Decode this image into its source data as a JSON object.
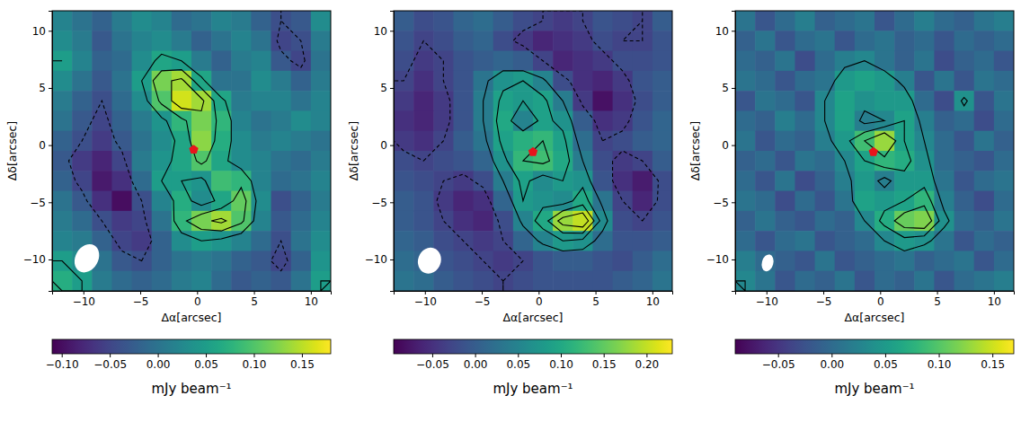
{
  "chart_data": [
    {
      "type": "heatmap",
      "color": "viridis",
      "xlabel": "Δα[arcsec]",
      "ylabel": "Δδ[arcsec]",
      "xlim": [
        -12.75,
        11.75
      ],
      "ylim": [
        -12.75,
        11.75
      ],
      "xticks": [
        {
          "value": -10,
          "label": "−10"
        },
        {
          "value": -5,
          "label": "−5"
        },
        0,
        5,
        10
      ],
      "yticks": [
        {
          "value": -10,
          "label": "−10"
        },
        {
          "value": -5,
          "label": "−5"
        },
        0,
        5,
        10
      ],
      "x": [
        -11.875,
        -10.125,
        -8.375,
        -6.625,
        -4.875,
        -3.125,
        -1.375,
        0.375,
        2.125,
        3.875,
        5.625,
        7.375,
        9.125,
        10.875
      ],
      "y": [
        10.875,
        9.125,
        7.375,
        5.625,
        3.875,
        2.125,
        0.375,
        -1.375,
        -3.125,
        -4.875,
        -6.625,
        -8.375,
        -10.125,
        -11.875
      ],
      "z": [
        [
          0.02,
          0.0,
          -0.02,
          0.01,
          0.03,
          0.02,
          -0.01,
          0.0,
          0.02,
          0.01,
          -0.02,
          -0.04,
          -0.03,
          0.03
        ],
        [
          0.03,
          0.01,
          -0.03,
          0.0,
          0.02,
          0.03,
          0.01,
          -0.02,
          0.0,
          0.02,
          0.0,
          -0.05,
          -0.04,
          0.01
        ],
        [
          0.05,
          0.02,
          -0.02,
          -0.01,
          0.03,
          0.06,
          0.05,
          0.01,
          -0.02,
          0.01,
          0.02,
          -0.03,
          -0.05,
          0.0
        ],
        [
          0.03,
          0.0,
          -0.03,
          0.0,
          0.05,
          0.12,
          0.14,
          0.06,
          0.0,
          0.0,
          0.03,
          0.01,
          -0.02,
          0.01
        ],
        [
          0.01,
          -0.02,
          -0.04,
          -0.01,
          0.03,
          0.1,
          0.16,
          0.14,
          0.06,
          0.01,
          0.02,
          0.02,
          0.0,
          0.02
        ],
        [
          0.0,
          -0.03,
          -0.05,
          -0.02,
          0.01,
          0.04,
          0.08,
          0.12,
          0.08,
          0.02,
          0.0,
          0.01,
          0.03,
          0.02
        ],
        [
          -0.02,
          -0.04,
          -0.06,
          -0.03,
          0.0,
          0.03,
          0.06,
          0.13,
          0.07,
          0.03,
          0.01,
          0.02,
          0.01,
          0.0
        ],
        [
          -0.03,
          -0.06,
          -0.08,
          -0.05,
          0.01,
          0.04,
          0.06,
          0.1,
          0.06,
          0.03,
          0.02,
          0.0,
          -0.01,
          0.01
        ],
        [
          -0.02,
          -0.05,
          -0.09,
          -0.07,
          -0.01,
          0.05,
          0.05,
          0.04,
          0.09,
          0.08,
          0.02,
          -0.01,
          0.0,
          0.02
        ],
        [
          0.0,
          -0.03,
          -0.07,
          -0.1,
          -0.04,
          0.02,
          0.07,
          0.03,
          0.06,
          0.11,
          0.03,
          -0.04,
          -0.02,
          0.01
        ],
        [
          0.01,
          -0.01,
          -0.04,
          -0.06,
          -0.05,
          0.0,
          0.08,
          0.12,
          0.14,
          0.1,
          0.02,
          -0.03,
          -0.01,
          0.02
        ],
        [
          0.02,
          0.01,
          -0.02,
          -0.05,
          -0.06,
          -0.02,
          0.03,
          0.05,
          0.04,
          0.02,
          -0.01,
          -0.04,
          0.0,
          0.03
        ],
        [
          0.05,
          0.03,
          0.0,
          -0.03,
          -0.04,
          -0.02,
          0.0,
          0.01,
          0.0,
          -0.02,
          -0.03,
          -0.05,
          -0.02,
          0.04
        ],
        [
          0.07,
          0.05,
          0.01,
          -0.01,
          -0.02,
          -0.01,
          0.01,
          0.02,
          -0.01,
          -0.03,
          -0.02,
          -0.03,
          0.0,
          0.05
        ]
      ],
      "contours": [
        -0.04,
        0.05,
        0.09,
        0.13
      ],
      "colorbar": {
        "label": "mJy beam⁻¹",
        "lim": [
          -0.11,
          0.18
        ],
        "ticks": [
          {
            "value": -0.1,
            "label": "−0.10"
          },
          {
            "value": -0.05,
            "label": "−0.05"
          },
          {
            "value": 0,
            "label": "0.00"
          },
          0.05,
          {
            "value": 0.1,
            "label": "0.10"
          },
          0.15
        ]
      },
      "beam": {
        "x": -9.7,
        "y": -9.9,
        "major": 2.6,
        "minor": 2.0,
        "pa": -30
      },
      "source": {
        "x": -0.3,
        "y": -0.4,
        "color": "#e8141c",
        "marker": "pentagon"
      }
    },
    {
      "type": "heatmap",
      "color": "viridis",
      "xlabel": "Δα[arcsec]",
      "ylabel": "Δδ[arcsec]",
      "xlim": [
        -12.75,
        11.75
      ],
      "ylim": [
        -12.75,
        11.75
      ],
      "xticks": [
        {
          "value": -10,
          "label": "−10"
        },
        {
          "value": -5,
          "label": "−5"
        },
        0,
        5,
        10
      ],
      "yticks": [
        {
          "value": -10,
          "label": "−10"
        },
        {
          "value": -5,
          "label": "−5"
        },
        0,
        5,
        10
      ],
      "x": [
        -11.875,
        -10.125,
        -8.375,
        -6.625,
        -4.875,
        -3.125,
        -1.375,
        0.375,
        2.125,
        3.875,
        5.625,
        7.375,
        9.125,
        10.875
      ],
      "y": [
        10.875,
        9.125,
        7.375,
        5.625,
        3.875,
        2.125,
        0.375,
        -1.375,
        -3.125,
        -4.875,
        -6.625,
        -8.375,
        -10.125,
        -11.875
      ],
      "z": [
        [
          0.0,
          -0.02,
          -0.01,
          0.01,
          0.02,
          0.0,
          -0.02,
          -0.03,
          -0.04,
          -0.03,
          -0.01,
          -0.02,
          -0.03,
          0.0
        ],
        [
          -0.01,
          -0.03,
          -0.02,
          0.0,
          0.01,
          -0.02,
          -0.04,
          -0.06,
          -0.05,
          -0.04,
          -0.02,
          -0.03,
          -0.03,
          -0.01
        ],
        [
          -0.02,
          -0.04,
          -0.03,
          -0.01,
          0.0,
          0.01,
          0.0,
          -0.03,
          -0.06,
          -0.05,
          -0.04,
          -0.02,
          -0.02,
          -0.01
        ],
        [
          -0.03,
          -0.05,
          -0.03,
          -0.01,
          0.03,
          0.07,
          0.08,
          0.05,
          -0.02,
          -0.05,
          -0.06,
          -0.04,
          -0.01,
          0.0
        ],
        [
          -0.04,
          -0.06,
          -0.04,
          -0.01,
          0.04,
          0.09,
          0.08,
          0.09,
          0.04,
          -0.04,
          -0.08,
          -0.05,
          -0.02,
          0.0
        ],
        [
          -0.05,
          -0.06,
          -0.04,
          -0.01,
          0.04,
          0.1,
          0.05,
          0.09,
          0.07,
          0.0,
          -0.05,
          -0.04,
          -0.01,
          0.01
        ],
        [
          -0.04,
          -0.05,
          -0.03,
          0.0,
          0.03,
          0.09,
          0.11,
          0.12,
          0.09,
          0.02,
          -0.03,
          -0.02,
          0.0,
          0.01
        ],
        [
          -0.02,
          -0.03,
          -0.02,
          -0.01,
          0.01,
          0.07,
          0.12,
          0.13,
          0.1,
          0.04,
          -0.02,
          -0.04,
          -0.03,
          0.0
        ],
        [
          -0.01,
          -0.02,
          -0.03,
          -0.04,
          -0.02,
          0.04,
          0.09,
          0.06,
          0.08,
          0.07,
          -0.01,
          -0.05,
          -0.07,
          -0.02
        ],
        [
          0.0,
          -0.01,
          -0.04,
          -0.06,
          -0.05,
          0.01,
          0.08,
          0.07,
          0.06,
          0.1,
          0.03,
          -0.03,
          -0.06,
          -0.02
        ],
        [
          0.0,
          -0.01,
          -0.03,
          -0.05,
          -0.06,
          -0.02,
          0.05,
          0.1,
          0.18,
          0.2,
          0.06,
          -0.02,
          -0.03,
          -0.01
        ],
        [
          0.01,
          0.0,
          -0.02,
          -0.03,
          -0.04,
          -0.03,
          0.01,
          0.05,
          0.08,
          0.07,
          0.02,
          -0.01,
          -0.01,
          0.0
        ],
        [
          0.02,
          0.01,
          -0.01,
          -0.02,
          -0.03,
          -0.04,
          -0.03,
          -0.01,
          0.0,
          0.0,
          -0.01,
          -0.02,
          0.0,
          0.02
        ],
        [
          0.03,
          0.02,
          0.0,
          -0.01,
          -0.02,
          -0.03,
          -0.02,
          -0.01,
          -0.01,
          -0.01,
          -0.01,
          0.0,
          0.01,
          0.03
        ]
      ],
      "contours": [
        -0.03,
        0.04,
        0.08,
        0.12,
        0.16
      ],
      "colorbar": {
        "label": "mJy beam⁻¹",
        "lim": [
          -0.095,
          0.23
        ],
        "ticks": [
          {
            "value": -0.05,
            "label": "−0.05"
          },
          {
            "value": 0,
            "label": "0.00"
          },
          0.05,
          {
            "value": 0.1,
            "label": "0.10"
          },
          0.15,
          {
            "value": 0.2,
            "label": "0.20"
          }
        ]
      },
      "beam": {
        "x": -9.6,
        "y": -10.1,
        "major": 2.3,
        "minor": 2.0,
        "pa": -20
      },
      "source": {
        "x": -0.5,
        "y": -0.6,
        "color": "#e8141c",
        "marker": "pentagon"
      }
    },
    {
      "type": "heatmap",
      "color": "viridis",
      "xlabel": "Δα[arcsec]",
      "ylabel": "Δδ[arcsec]",
      "xlim": [
        -12.75,
        11.75
      ],
      "ylim": [
        -12.75,
        11.75
      ],
      "xticks": [
        {
          "value": -10,
          "label": "−10"
        },
        {
          "value": -5,
          "label": "−5"
        },
        0,
        5,
        10
      ],
      "yticks": [
        {
          "value": -10,
          "label": "−10"
        },
        {
          "value": -5,
          "label": "−5"
        },
        0,
        5,
        10
      ],
      "x": [
        -11.875,
        -10.125,
        -8.375,
        -6.625,
        -4.875,
        -3.125,
        -1.375,
        0.375,
        2.125,
        3.875,
        5.625,
        7.375,
        9.125,
        10.875
      ],
      "y": [
        10.875,
        9.125,
        7.375,
        5.625,
        3.875,
        2.125,
        0.375,
        -1.375,
        -3.125,
        -4.875,
        -6.625,
        -8.375,
        -10.125,
        -11.875
      ],
      "z": [
        [
          0.01,
          -0.02,
          0.0,
          0.02,
          -0.01,
          0.0,
          0.01,
          -0.02,
          0.0,
          0.02,
          0.0,
          -0.01,
          0.01,
          0.02
        ],
        [
          -0.01,
          0.01,
          -0.02,
          0.0,
          0.01,
          -0.02,
          0.0,
          0.01,
          -0.01,
          0.0,
          -0.02,
          0.0,
          -0.01,
          0.0
        ],
        [
          0.0,
          -0.01,
          0.01,
          -0.03,
          0.0,
          0.02,
          0.03,
          0.01,
          -0.01,
          0.01,
          -0.03,
          -0.01,
          0.0,
          -0.02
        ],
        [
          0.01,
          0.0,
          -0.02,
          0.0,
          0.01,
          0.05,
          0.06,
          0.05,
          0.02,
          -0.02,
          0.01,
          -0.02,
          0.01,
          0.0
        ],
        [
          -0.02,
          0.01,
          0.0,
          -0.02,
          0.03,
          0.06,
          0.04,
          0.05,
          0.05,
          0.0,
          -0.03,
          0.04,
          -0.02,
          0.01
        ],
        [
          0.0,
          -0.01,
          0.02,
          0.0,
          0.03,
          0.06,
          0.02,
          0.03,
          0.06,
          0.02,
          -0.01,
          0.0,
          -0.03,
          0.0
        ],
        [
          0.01,
          -0.02,
          0.0,
          -0.01,
          0.02,
          0.05,
          0.09,
          0.13,
          0.06,
          0.03,
          0.0,
          -0.02,
          0.01,
          -0.01
        ],
        [
          -0.01,
          0.0,
          -0.02,
          0.01,
          0.0,
          0.03,
          0.06,
          0.08,
          0.07,
          0.04,
          0.0,
          -0.01,
          -0.02,
          0.0
        ],
        [
          0.0,
          -0.02,
          0.01,
          -0.03,
          -0.01,
          0.02,
          0.05,
          0.02,
          0.05,
          0.05,
          0.01,
          -0.02,
          0.0,
          0.01
        ],
        [
          0.01,
          0.0,
          -0.03,
          0.0,
          -0.02,
          0.01,
          0.06,
          0.05,
          0.06,
          0.08,
          0.02,
          -0.01,
          -0.03,
          0.0
        ],
        [
          -0.01,
          0.01,
          -0.01,
          -0.02,
          0.0,
          -0.01,
          0.03,
          0.07,
          0.11,
          0.12,
          0.04,
          0.0,
          -0.01,
          0.01
        ],
        [
          0.0,
          -0.02,
          0.0,
          0.01,
          -0.02,
          -0.01,
          0.0,
          0.03,
          0.05,
          0.04,
          0.01,
          -0.02,
          0.0,
          -0.01
        ],
        [
          0.02,
          0.0,
          -0.01,
          -0.02,
          0.01,
          -0.02,
          -0.01,
          0.0,
          0.01,
          -0.01,
          0.0,
          0.01,
          -0.02,
          0.0
        ],
        [
          0.03,
          0.01,
          -0.02,
          0.0,
          -0.01,
          0.01,
          -0.02,
          0.0,
          -0.01,
          0.01,
          -0.02,
          0.0,
          0.01,
          0.02
        ]
      ],
      "contours": [
        -0.03,
        0.03,
        0.06,
        0.09
      ],
      "colorbar": {
        "label": "mJy beam⁻¹",
        "lim": [
          -0.09,
          0.17
        ],
        "ticks": [
          {
            "value": -0.05,
            "label": "−0.05"
          },
          {
            "value": 0,
            "label": "0.00"
          },
          0.05,
          {
            "value": 0.1,
            "label": "0.10"
          },
          0.15
        ]
      },
      "beam": {
        "x": -9.9,
        "y": -10.3,
        "major": 1.5,
        "minor": 1.0,
        "pa": -15
      },
      "source": {
        "x": -0.6,
        "y": -0.6,
        "color": "#e8141c",
        "marker": "pentagon"
      }
    }
  ]
}
